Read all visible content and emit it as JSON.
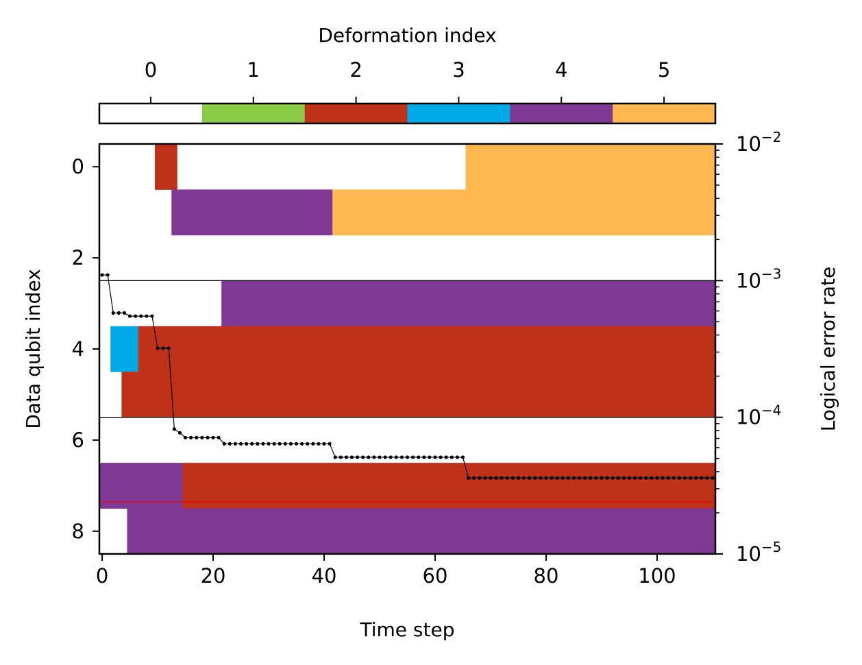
{
  "chart_data": {
    "type": "heatmap",
    "title": "",
    "xlabel": "Time step",
    "ylabel": "Data qubit index",
    "y2label": "Logical error rate",
    "colorbar": {
      "label": "Deformation index",
      "ticks": [
        0,
        1,
        2,
        3,
        4,
        5
      ],
      "tick_labels": [
        "0",
        "1",
        "2",
        "3",
        "4",
        "5"
      ],
      "colors": [
        "#ffffff",
        "#8acb48",
        "#c0311a",
        "#00aae6",
        "#7f3893",
        "#ffb850"
      ]
    },
    "xlim": [
      -0.5,
      110.5
    ],
    "ylim": [
      8.5,
      -0.5
    ],
    "x_ticks": [
      0,
      20,
      40,
      60,
      80,
      100
    ],
    "y_ticks": [
      0,
      2,
      4,
      6,
      8
    ],
    "y2_scale": "log",
    "y2lim": [
      1e-05,
      0.01
    ],
    "y2_ticks": [
      {
        "value": 0.01,
        "label_base": "10",
        "label_exp": "−2"
      },
      {
        "value": 0.001,
        "label_base": "10",
        "label_exp": "−3"
      },
      {
        "value": 0.0001,
        "label_base": "10",
        "label_exp": "−4"
      },
      {
        "value": 1e-05,
        "label_base": "10",
        "label_exp": "−5"
      }
    ],
    "deformation_segments": [
      {
        "qubit": 0,
        "t_start": 9.5,
        "t_end": 13.5,
        "index": 2
      },
      {
        "qubit": 0,
        "t_start": 65.5,
        "t_end": 110.5,
        "index": 5
      },
      {
        "qubit": 1,
        "t_start": 12.5,
        "t_end": 41.5,
        "index": 4
      },
      {
        "qubit": 1,
        "t_start": 41.5,
        "t_end": 110.5,
        "index": 5
      },
      {
        "qubit": 3,
        "t_start": 21.5,
        "t_end": 110.5,
        "index": 4
      },
      {
        "qubit": 4,
        "t_start": 1.5,
        "t_end": 6.5,
        "index": 3
      },
      {
        "qubit": 4,
        "t_start": 6.5,
        "t_end": 110.5,
        "index": 2
      },
      {
        "qubit": 5,
        "t_start": 3.5,
        "t_end": 110.5,
        "index": 2
      },
      {
        "qubit": 7,
        "t_start": -0.5,
        "t_end": 14.5,
        "index": 4
      },
      {
        "qubit": 7,
        "t_start": 14.5,
        "t_end": 110.5,
        "index": 2
      },
      {
        "qubit": 8,
        "t_start": 4.5,
        "t_end": 110.5,
        "index": 4
      }
    ],
    "separator_lines_y": [
      2.5,
      5.5
    ],
    "reference_line": {
      "value": 2.4e-05,
      "color": "#ff0000"
    },
    "series": [
      {
        "color": "#000000",
        "breakpoints": [
          {
            "from_t": 0,
            "to_t": 1,
            "value": 0.0011
          },
          {
            "from_t": 2,
            "to_t": 4,
            "value": 0.00058
          },
          {
            "from_t": 5,
            "to_t": 9,
            "value": 0.00055
          },
          {
            "from_t": 10,
            "to_t": 12,
            "value": 0.00032
          },
          {
            "from_t": 13,
            "to_t": 13,
            "value": 8.2e-05
          },
          {
            "from_t": 14,
            "to_t": 14,
            "value": 7.7e-05
          },
          {
            "from_t": 15,
            "to_t": 21,
            "value": 7.1e-05
          },
          {
            "from_t": 22,
            "to_t": 41,
            "value": 6.4e-05
          },
          {
            "from_t": 42,
            "to_t": 65,
            "value": 5.1e-05
          },
          {
            "from_t": 66,
            "to_t": 110,
            "value": 3.6e-05
          }
        ]
      }
    ]
  }
}
